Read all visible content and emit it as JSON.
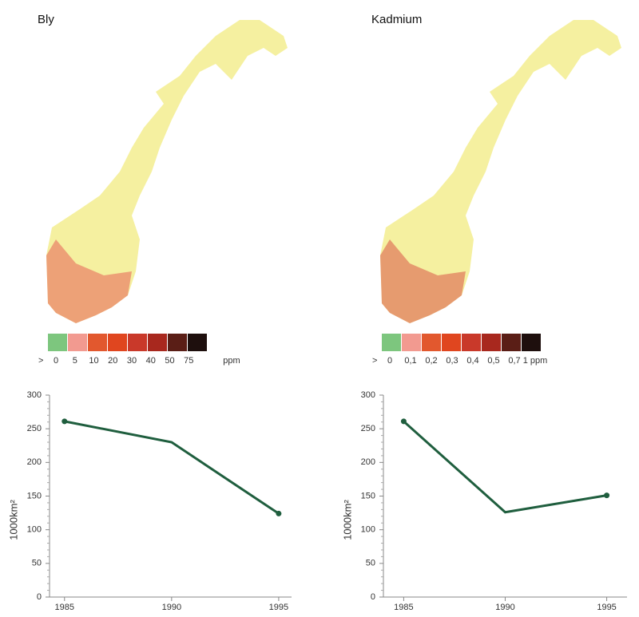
{
  "maps": [
    {
      "title": "Bly",
      "legend": {
        "colors": [
          "#7dc67e",
          "#f29a90",
          "#e2582e",
          "#e0461f",
          "#c9392a",
          "#a8281e",
          "#5a1e16",
          "#1e0f0d"
        ],
        "labels": [
          ">",
          "0",
          "5",
          "10",
          "20",
          "30",
          "40",
          "50",
          "75",
          "ppm"
        ]
      }
    },
    {
      "title": "Kadmium",
      "legend": {
        "colors": [
          "#7dc67e",
          "#f29a90",
          "#e2582e",
          "#e0461f",
          "#c9392a",
          "#a8281e",
          "#5a1e16",
          "#1e0f0d"
        ],
        "labels": [
          ">",
          "0",
          "0,1",
          "0,2",
          "0,3",
          "0,4",
          "0,5",
          "0,7",
          "1 ppm"
        ]
      }
    }
  ],
  "chart_data": [
    {
      "type": "line",
      "y_label": "1000km²",
      "x": [
        1985,
        1990,
        1995
      ],
      "values": [
        261,
        230,
        124
      ],
      "color": "#1f5e3e",
      "xlim": [
        1984.3,
        1995.6
      ],
      "xticks": [
        1985,
        1990,
        1995
      ],
      "ylim": [
        0,
        300
      ],
      "yticks": [
        0,
        50,
        100,
        150,
        200,
        250,
        300
      ]
    },
    {
      "type": "line",
      "y_label": "1000km²",
      "x": [
        1985,
        1990,
        1995
      ],
      "values": [
        261,
        126,
        151
      ],
      "color": "#1f5e3e",
      "xlim": [
        1984.0,
        1996.0
      ],
      "xticks": [
        1985,
        1990,
        1995
      ],
      "ylim": [
        0,
        300
      ],
      "yticks": [
        0,
        50,
        100,
        150,
        200,
        250,
        300
      ]
    }
  ]
}
